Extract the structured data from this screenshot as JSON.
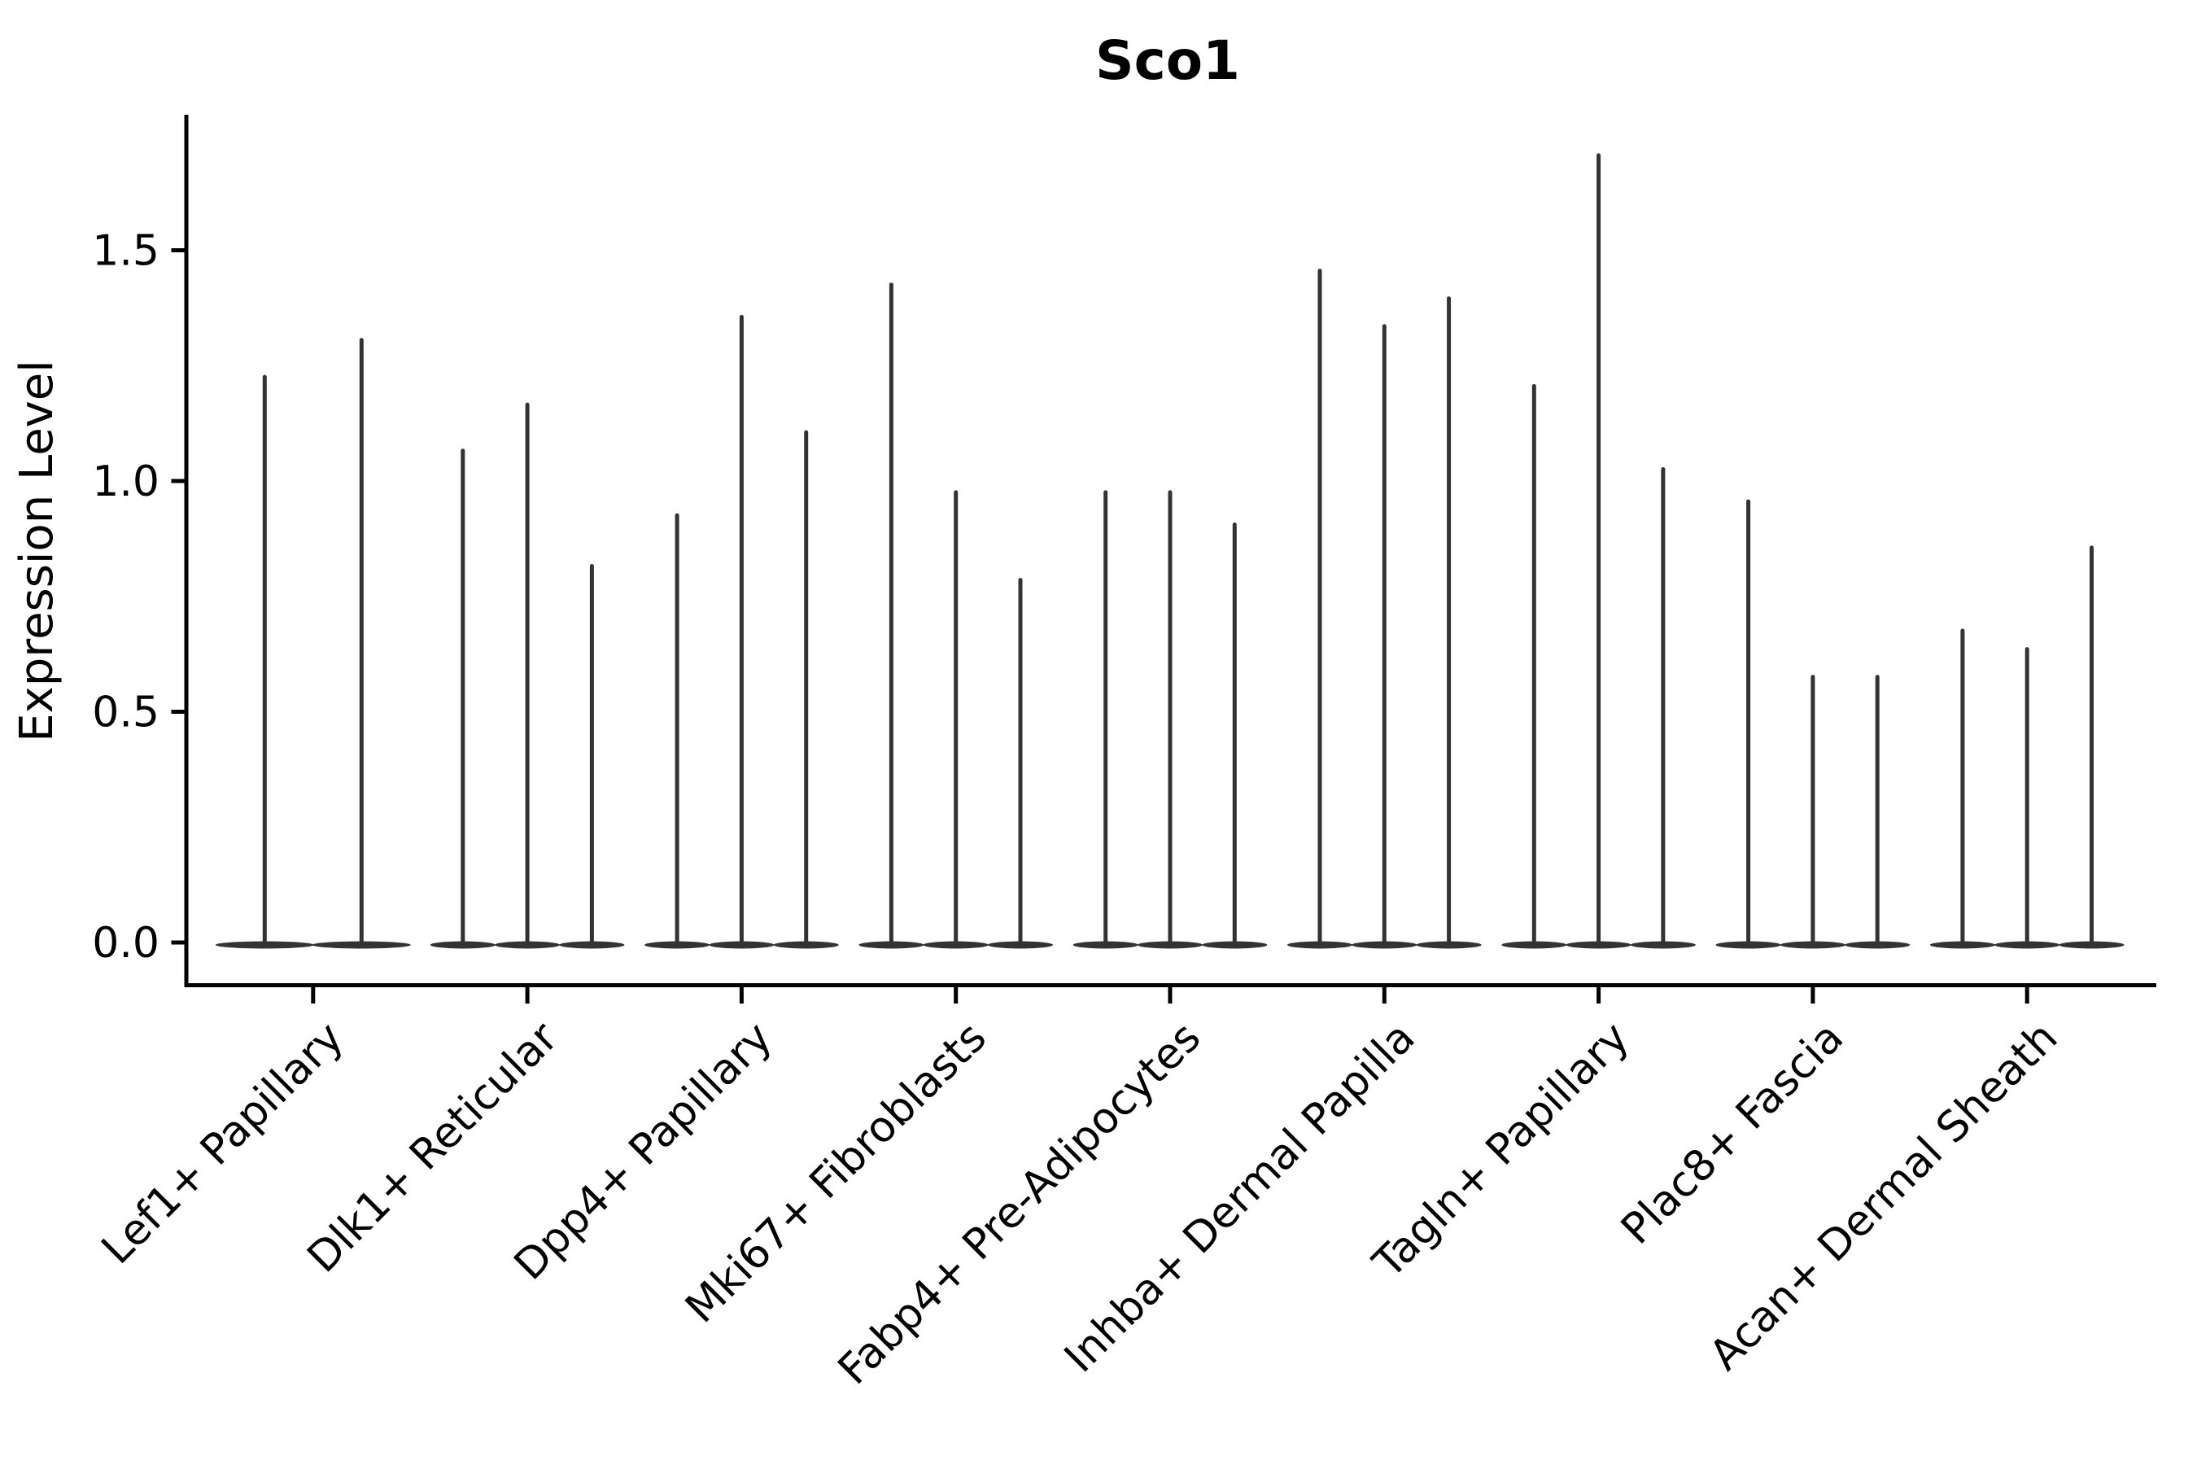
{
  "figure": {
    "title": "Sco1",
    "y_axis": {
      "label": "Expression Level",
      "ticks": [
        "0.0",
        "0.5",
        "1.0",
        "1.5"
      ]
    }
  },
  "chart_data": {
    "type": "violin",
    "title": "Sco1",
    "ylabel": "Expression Level",
    "xlabel": "",
    "ylim": [
      -0.09,
      1.8
    ],
    "yticks": [
      0.0,
      0.5,
      1.0,
      1.5
    ],
    "grid": false,
    "legend": "none",
    "style": "thin spike violins: nearly all mass at 0 (flat lens at baseline) with a thin vertical spike up to the max expression value",
    "categories": [
      "Lef1+ Papillary",
      "Dlk1+ Reticular",
      "Dpp4+ Papillary",
      "Mki67+ Fibroblasts",
      "Fabp4+ Pre-Adipocytes",
      "Inhba+ Dermal Papilla",
      "Tagln+ Papillary",
      "Plac8+ Fascia",
      "Acan+ Dermal Sheath"
    ],
    "violins": [
      {
        "category": "Lef1+ Papillary",
        "max_values": [
          1.23,
          1.31
        ]
      },
      {
        "category": "Dlk1+ Reticular",
        "max_values": [
          1.07,
          1.17,
          0.82
        ]
      },
      {
        "category": "Dpp4+ Papillary",
        "max_values": [
          0.93,
          1.36,
          1.11
        ]
      },
      {
        "category": "Mki67+ Fibroblasts",
        "max_values": [
          1.43,
          0.98,
          0.79
        ]
      },
      {
        "category": "Fabp4+ Pre-Adipocytes",
        "max_values": [
          0.98,
          0.98,
          0.91
        ]
      },
      {
        "category": "Inhba+ Dermal Papilla",
        "max_values": [
          1.46,
          1.34,
          1.4
        ]
      },
      {
        "category": "Tagln+ Papillary",
        "max_values": [
          1.21,
          1.71,
          1.03
        ]
      },
      {
        "category": "Plac8+ Fascia",
        "max_values": [
          0.96,
          0.58,
          0.58
        ]
      },
      {
        "category": "Acan+ Dermal Sheath",
        "max_values": [
          0.68,
          0.64,
          0.86
        ]
      }
    ]
  },
  "colors": {
    "background": "#ffffff",
    "violin_fill": "#333333",
    "axis": "#000000",
    "text": "#000000"
  }
}
